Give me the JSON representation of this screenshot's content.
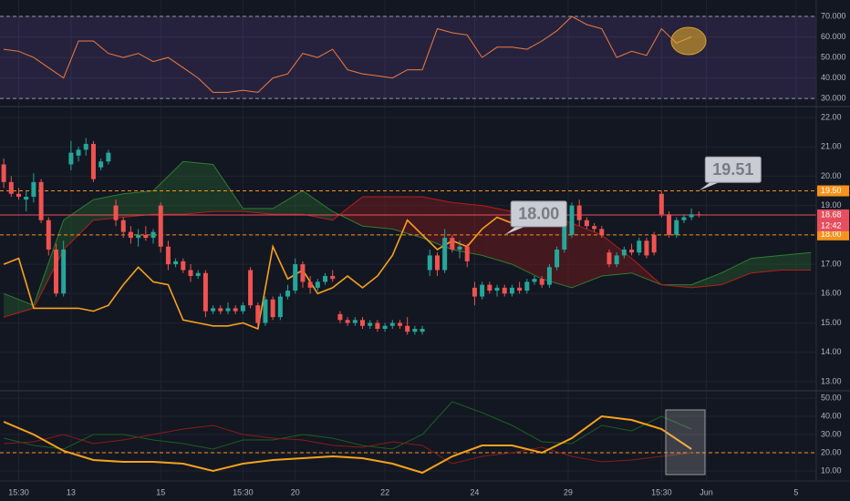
{
  "chart_data": [
    {
      "type": "line",
      "x": [
        0,
        2,
        4,
        6,
        8,
        10,
        12,
        14,
        16,
        18,
        20,
        22,
        24,
        26,
        28,
        30,
        32,
        34,
        36,
        38,
        40,
        42,
        44,
        46,
        48,
        50,
        52,
        54,
        56,
        58,
        60,
        62,
        64,
        66,
        68,
        70,
        72,
        74,
        76,
        78,
        80,
        82,
        84,
        86,
        88,
        90,
        92
      ],
      "values": [
        54,
        53,
        50,
        45,
        40,
        58,
        58,
        52,
        50,
        52,
        48,
        50,
        45,
        40,
        33,
        33,
        34,
        33,
        40,
        42,
        52,
        50,
        54,
        44,
        42,
        41,
        40,
        44,
        44,
        64,
        62,
        61,
        50,
        55,
        55,
        54,
        58,
        63,
        70,
        66,
        64,
        50,
        53,
        51,
        64,
        57,
        60
      ],
      "color": "#f07b3f",
      "band": [
        30,
        70
      ],
      "band_color": "#7e57c2",
      "xlim": [
        -0.5,
        108.7
      ],
      "ylim": [
        26.5,
        78
      ],
      "yticks": [
        {
          "value": 70,
          "label": "70.000"
        },
        {
          "value": 60,
          "label": "60.000"
        },
        {
          "value": 50,
          "label": "50.000"
        },
        {
          "value": 40,
          "label": "40.000"
        },
        {
          "value": 30,
          "label": "30.000"
        }
      ]
    },
    {
      "type": "candlestick",
      "open": [
        20.4,
        19.8,
        19.4,
        19.2,
        19.3,
        19.8,
        18.5,
        17.5,
        16.0,
        20.4,
        20.7,
        20.9,
        21.1,
        20.3,
        20.5,
        19.0,
        18.5,
        18.1,
        17.9,
        18.0,
        17.9,
        19.0,
        17.6,
        17.0,
        17.1,
        16.8,
        16.6,
        16.7,
        15.4,
        15.5,
        15.4,
        15.5,
        15.4,
        16.8,
        15.6,
        15.0,
        15.8,
        15.2,
        15.9,
        16.1,
        17.0,
        16.4,
        16.2,
        16.4,
        16.6,
        15.3,
        15.1,
        15.0,
        15.1,
        14.9,
        15.0,
        14.8,
        14.9,
        15.0,
        14.9,
        14.7,
        14.7,
        16.8,
        17.3,
        16.8,
        17.9,
        17.5,
        17.6,
        16.2,
        15.9,
        16.3,
        16.1,
        16.2,
        16.0,
        16.2,
        16.1,
        16.4,
        16.5,
        16.3,
        16.9,
        17.5,
        18.0,
        19.0,
        18.5,
        18.3,
        18.2,
        17.4,
        17.0,
        17.3,
        17.5,
        17.4,
        17.8,
        18.0,
        19.4,
        18.7,
        18.0,
        18.5,
        18.6,
        18.7
      ],
      "high": [
        20.6,
        20.0,
        19.6,
        19.5,
        20.1,
        19.9,
        18.6,
        17.7,
        17.8,
        21.2,
        21.0,
        21.3,
        21.2,
        20.6,
        20.9,
        19.2,
        18.6,
        18.3,
        18.2,
        18.3,
        18.2,
        19.1,
        17.8,
        17.2,
        17.2,
        17.0,
        16.8,
        16.8,
        15.6,
        15.6,
        15.7,
        15.6,
        15.7,
        16.9,
        15.7,
        15.9,
        15.9,
        16.0,
        16.3,
        17.2,
        17.1,
        16.6,
        16.5,
        16.7,
        16.8,
        15.4,
        15.2,
        15.2,
        15.2,
        15.1,
        15.1,
        15.0,
        15.1,
        15.1,
        15.2,
        14.9,
        14.9,
        17.5,
        17.4,
        18.2,
        18.0,
        17.8,
        17.7,
        16.4,
        16.4,
        16.4,
        16.3,
        16.3,
        16.3,
        16.4,
        16.5,
        16.6,
        16.6,
        17.0,
        17.6,
        18.4,
        19.1,
        19.2,
        18.6,
        18.4,
        18.3,
        17.5,
        17.4,
        17.6,
        17.7,
        17.9,
        17.9,
        18.1,
        19.5,
        18.8,
        18.6,
        18.7,
        18.9,
        18.8
      ],
      "low": [
        19.6,
        19.3,
        19.2,
        18.8,
        19.1,
        18.4,
        17.3,
        15.9,
        15.9,
        20.2,
        20.5,
        20.7,
        19.8,
        20.2,
        20.4,
        18.3,
        17.9,
        17.7,
        17.6,
        17.8,
        17.7,
        17.4,
        16.8,
        16.9,
        16.7,
        16.4,
        16.5,
        15.2,
        15.3,
        15.3,
        15.3,
        15.3,
        15.3,
        15.5,
        14.9,
        14.9,
        15.1,
        15.1,
        15.8,
        16.0,
        16.2,
        16.0,
        16.1,
        16.3,
        16.4,
        15.0,
        14.9,
        14.9,
        14.8,
        14.8,
        14.7,
        14.7,
        14.8,
        14.8,
        14.6,
        14.6,
        14.6,
        16.6,
        16.6,
        16.7,
        17.4,
        17.2,
        16.9,
        15.6,
        15.8,
        16.0,
        15.9,
        15.9,
        15.9,
        16.0,
        16.0,
        16.3,
        16.2,
        16.2,
        16.8,
        17.4,
        17.9,
        18.3,
        18.2,
        18.1,
        17.9,
        16.9,
        16.9,
        17.2,
        17.3,
        17.3,
        17.2,
        17.3,
        18.6,
        17.9,
        17.9,
        18.4,
        18.5,
        18.6
      ],
      "close": [
        19.8,
        19.4,
        19.3,
        19.3,
        19.8,
        18.5,
        17.5,
        16.0,
        17.5,
        20.8,
        20.9,
        21.1,
        19.9,
        20.5,
        20.8,
        18.5,
        18.1,
        17.9,
        18.0,
        17.9,
        18.1,
        17.6,
        17.0,
        17.1,
        16.8,
        16.6,
        16.7,
        15.4,
        15.5,
        15.4,
        15.5,
        15.4,
        15.6,
        15.6,
        15.0,
        15.8,
        15.2,
        15.9,
        16.1,
        17.0,
        16.4,
        16.2,
        16.4,
        16.6,
        16.5,
        15.1,
        15.0,
        15.1,
        14.9,
        15.0,
        14.8,
        14.9,
        15.0,
        14.9,
        14.7,
        14.8,
        14.8,
        17.3,
        16.8,
        17.9,
        17.5,
        17.6,
        17.1,
        15.9,
        16.3,
        16.1,
        16.2,
        16.0,
        16.2,
        16.1,
        16.4,
        16.5,
        16.3,
        16.9,
        17.5,
        18.3,
        19.0,
        18.5,
        18.3,
        18.2,
        18.0,
        17.0,
        17.3,
        17.5,
        17.4,
        17.8,
        17.3,
        17.4,
        18.7,
        18.0,
        18.5,
        18.6,
        18.7,
        18.68
      ],
      "up_color": "#26a69a",
      "down_color": "#ef5350",
      "cloud": {
        "x": [
          0,
          4,
          8,
          12,
          16,
          20,
          24,
          28,
          32,
          36,
          40,
          44,
          48,
          52,
          56,
          60,
          64,
          68,
          72,
          76,
          80,
          84,
          88,
          92,
          96,
          100,
          104,
          108
        ],
        "span_a": [
          16.0,
          15.6,
          18.5,
          19.2,
          19.4,
          19.5,
          20.5,
          20.4,
          18.9,
          18.9,
          19.5,
          18.8,
          18.3,
          18.2,
          17.9,
          17.5,
          17.3,
          17.0,
          16.5,
          16.2,
          16.6,
          16.7,
          16.3,
          16.3,
          16.7,
          17.2,
          17.3,
          17.4
        ],
        "span_b": [
          15.2,
          15.5,
          17.5,
          18.5,
          18.6,
          18.7,
          18.7,
          18.8,
          18.8,
          18.7,
          18.7,
          18.5,
          19.3,
          19.3,
          19.3,
          19.1,
          19.0,
          18.8,
          18.7,
          18.4,
          18.0,
          17.2,
          16.3,
          16.2,
          16.3,
          16.7,
          16.8,
          16.8
        ],
        "up_color": "#2e7d32",
        "down_color": "#b71c1c"
      },
      "line": {
        "x": [
          0,
          2,
          4,
          6,
          8,
          10,
          12,
          14,
          16,
          18,
          20,
          22,
          24,
          26,
          28,
          30,
          32,
          34,
          36,
          38,
          40,
          42,
          44,
          46,
          48,
          50,
          52,
          54,
          56,
          58,
          60,
          62,
          64,
          66,
          68,
          70
        ],
        "values": [
          17.0,
          17.2,
          15.5,
          15.5,
          15.5,
          15.5,
          15.4,
          15.6,
          16.3,
          16.9,
          16.4,
          16.3,
          15.1,
          15.0,
          14.9,
          14.9,
          15.0,
          14.8,
          17.6,
          16.5,
          16.8,
          16.0,
          16.2,
          16.6,
          16.2,
          16.6,
          17.3,
          18.5,
          18.0,
          17.5,
          17.8,
          17.6,
          18.2,
          18.6,
          18.4,
          18.6
        ],
        "color": "#f7a21b"
      },
      "price_tags": [
        {
          "value": 19.5,
          "label": "19.50",
          "color": "#f7931a",
          "line_style": "dashed"
        },
        {
          "value": 18.68,
          "label": "18.68",
          "color": "#e84e5d",
          "line_style": "solid"
        },
        {
          "value": 18.0,
          "label": "18.00",
          "color": "#f7931a",
          "line_style": "dashed"
        }
      ],
      "countdown": "12:42",
      "annotations": [
        {
          "x": 93,
          "value": 19.51,
          "label": "19.51"
        },
        {
          "x": 67,
          "value": 18.0,
          "label": "18.00"
        }
      ],
      "xlim": [
        -0.5,
        108.7
      ],
      "ylim": [
        12.72,
        22.34
      ],
      "yticks": [
        {
          "value": 22,
          "label": "22.00"
        },
        {
          "value": 21,
          "label": "21.00"
        },
        {
          "value": 20,
          "label": "20.00"
        },
        {
          "value": 19,
          "label": "19.00"
        },
        {
          "value": 18,
          "label": "18.00"
        },
        {
          "value": 17,
          "label": "17.00"
        },
        {
          "value": 16,
          "label": "16.00"
        },
        {
          "value": 15,
          "label": "15.00"
        },
        {
          "value": 14,
          "label": "14.00"
        },
        {
          "value": 13,
          "label": "13.00"
        }
      ]
    },
    {
      "type": "line",
      "x": [
        0,
        4,
        8,
        12,
        16,
        20,
        24,
        28,
        32,
        36,
        40,
        44,
        48,
        52,
        56,
        60,
        64,
        68,
        72,
        76,
        80,
        84,
        88,
        92
      ],
      "series": [
        {
          "color": "#1b5e20",
          "values": [
            28,
            24,
            22,
            30,
            30,
            27,
            25,
            22,
            27,
            27,
            30,
            28,
            24,
            22,
            30,
            48,
            42,
            35,
            26,
            25,
            35,
            32,
            40,
            33
          ]
        },
        {
          "color": "#8b1a1a",
          "values": [
            25,
            26,
            30,
            25,
            27,
            30,
            33,
            35,
            30,
            28,
            27,
            24,
            23,
            26,
            24,
            14,
            18,
            20,
            23,
            18,
            15,
            16,
            18,
            20
          ]
        },
        {
          "color": "#f7a21b",
          "values": [
            37,
            30,
            21,
            16,
            15,
            15,
            14,
            10,
            14,
            16,
            17,
            18,
            17,
            14,
            9,
            18,
            24,
            24,
            20,
            28,
            40,
            38,
            33,
            22
          ]
        }
      ],
      "hline": 20,
      "hline_color": "#f7931a",
      "xlim": [
        -0.5,
        108.7
      ],
      "ylim": [
        4.5,
        53.5
      ],
      "yticks": [
        {
          "value": 50,
          "label": "50.00"
        },
        {
          "value": 40,
          "label": "40.00"
        },
        {
          "value": 30,
          "label": "30.00"
        },
        {
          "value": 20,
          "label": "20.00"
        },
        {
          "value": 10,
          "label": "10.00"
        }
      ],
      "xticks": [
        {
          "value": 2,
          "label": "15:30"
        },
        {
          "value": 9,
          "label": "13"
        },
        {
          "value": 21,
          "label": "15"
        },
        {
          "value": 32,
          "label": "15:30"
        },
        {
          "value": 39,
          "label": "20"
        },
        {
          "value": 51,
          "label": "22"
        },
        {
          "value": 63,
          "label": "24"
        },
        {
          "value": 75.5,
          "label": "29"
        },
        {
          "value": 88,
          "label": "15:30"
        },
        {
          "value": 94,
          "label": "Jun"
        },
        {
          "value": 106,
          "label": "5"
        }
      ]
    }
  ]
}
